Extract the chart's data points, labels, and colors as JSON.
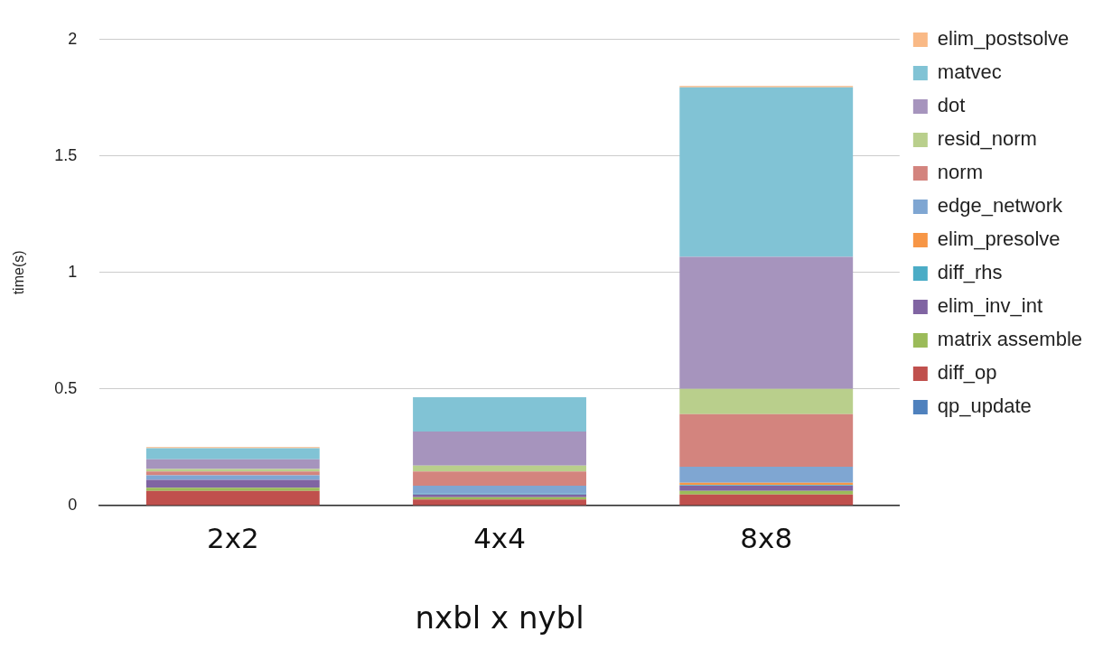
{
  "chart_data": {
    "type": "bar",
    "stacked": true,
    "xlabel": "nxbl x nybl",
    "ylabel": "time(s)",
    "categories": [
      "2x2",
      "4x4",
      "8x8"
    ],
    "ylim": [
      0,
      2
    ],
    "yticks": [
      0,
      0.5,
      1,
      1.5,
      2
    ],
    "grid": "y",
    "legend": "right",
    "series": [
      {
        "name": "qp_update",
        "color": "#4f81bd",
        "values": [
          0,
          0,
          0
        ]
      },
      {
        "name": "diff_op",
        "color": "#c0504d",
        "values": [
          0.063,
          0.026,
          0.047
        ]
      },
      {
        "name": "matrix assemble",
        "color": "#9bbb59",
        "values": [
          0.014,
          0.01,
          0.016
        ]
      },
      {
        "name": "elim_inv_int",
        "color": "#8064a2",
        "values": [
          0.033,
          0.011,
          0.022
        ]
      },
      {
        "name": "diff_rhs",
        "color": "#4bacc6",
        "values": [
          0,
          0.004,
          0.003
        ]
      },
      {
        "name": "elim_presolve",
        "color": "#f79646",
        "values": [
          0,
          0,
          0.01
        ]
      },
      {
        "name": "edge_network",
        "color": "#7fa6d2",
        "values": [
          0.02,
          0.034,
          0.069
        ]
      },
      {
        "name": "norm",
        "color": "#d3847e",
        "values": [
          0.016,
          0.061,
          0.225
        ]
      },
      {
        "name": "resid_norm",
        "color": "#b9cf8c",
        "values": [
          0.011,
          0.025,
          0.109
        ]
      },
      {
        "name": "dot",
        "color": "#a694bd",
        "values": [
          0.042,
          0.147,
          0.566
        ]
      },
      {
        "name": "matvec",
        "color": "#81c3d5",
        "values": [
          0.047,
          0.147,
          0.728
        ]
      },
      {
        "name": "elim_postsolve",
        "color": "#f9b986",
        "values": [
          0.005,
          0,
          0.006
        ]
      }
    ]
  }
}
